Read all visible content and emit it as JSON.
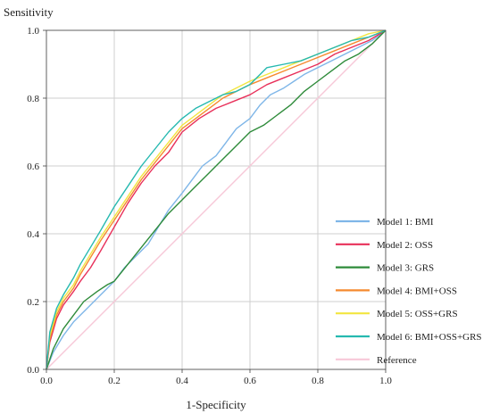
{
  "chart_data": {
    "type": "line",
    "title": "",
    "xlabel": "1-Specificity",
    "ylabel": "Sensitivity",
    "xlim": [
      0,
      1
    ],
    "ylim": [
      0,
      1
    ],
    "xticks": [
      "0.0",
      "0.2",
      "0.4",
      "0.6",
      "0.8",
      "1.0"
    ],
    "yticks": [
      "0.0",
      "0.2",
      "0.4",
      "0.6",
      "0.8",
      "1.0"
    ],
    "grid": true,
    "legend_position": "bottom-right",
    "series": [
      {
        "name": "Model 1: BMI",
        "color": "#7fb6e8",
        "x": [
          0,
          0.02,
          0.05,
          0.08,
          0.12,
          0.16,
          0.2,
          0.23,
          0.26,
          0.3,
          0.33,
          0.36,
          0.4,
          0.43,
          0.46,
          0.5,
          0.53,
          0.56,
          0.6,
          0.63,
          0.66,
          0.7,
          0.73,
          0.76,
          0.8,
          0.84,
          0.88,
          0.92,
          0.96,
          1.0
        ],
        "y": [
          0,
          0.05,
          0.1,
          0.14,
          0.18,
          0.22,
          0.26,
          0.3,
          0.33,
          0.37,
          0.42,
          0.47,
          0.52,
          0.56,
          0.6,
          0.63,
          0.67,
          0.71,
          0.74,
          0.78,
          0.81,
          0.83,
          0.85,
          0.87,
          0.89,
          0.91,
          0.93,
          0.95,
          0.97,
          1.0
        ]
      },
      {
        "name": "Model 2: OSS",
        "color": "#e8305a",
        "x": [
          0,
          0.01,
          0.03,
          0.05,
          0.08,
          0.1,
          0.13,
          0.16,
          0.2,
          0.24,
          0.28,
          0.32,
          0.36,
          0.4,
          0.45,
          0.5,
          0.55,
          0.6,
          0.65,
          0.7,
          0.75,
          0.8,
          0.85,
          0.9,
          0.95,
          1.0
        ],
        "y": [
          0,
          0.08,
          0.15,
          0.19,
          0.23,
          0.26,
          0.3,
          0.35,
          0.42,
          0.49,
          0.55,
          0.6,
          0.64,
          0.7,
          0.74,
          0.77,
          0.79,
          0.81,
          0.84,
          0.86,
          0.88,
          0.9,
          0.93,
          0.95,
          0.97,
          1.0
        ]
      },
      {
        "name": "Model 3: GRS",
        "color": "#2e8b3a",
        "x": [
          0,
          0.02,
          0.05,
          0.08,
          0.11,
          0.15,
          0.18,
          0.2,
          0.24,
          0.28,
          0.32,
          0.36,
          0.4,
          0.44,
          0.48,
          0.52,
          0.56,
          0.6,
          0.64,
          0.68,
          0.72,
          0.76,
          0.8,
          0.84,
          0.88,
          0.92,
          0.96,
          1.0
        ],
        "y": [
          0,
          0.06,
          0.12,
          0.16,
          0.2,
          0.23,
          0.25,
          0.26,
          0.31,
          0.36,
          0.41,
          0.46,
          0.5,
          0.54,
          0.58,
          0.62,
          0.66,
          0.7,
          0.72,
          0.75,
          0.78,
          0.82,
          0.85,
          0.88,
          0.91,
          0.93,
          0.96,
          1.0
        ]
      },
      {
        "name": "Model 4: BMI+OSS",
        "color": "#f58a2e",
        "x": [
          0,
          0.01,
          0.03,
          0.05,
          0.08,
          0.1,
          0.13,
          0.16,
          0.2,
          0.24,
          0.28,
          0.32,
          0.36,
          0.4,
          0.44,
          0.48,
          0.52,
          0.56,
          0.6,
          0.65,
          0.7,
          0.75,
          0.8,
          0.85,
          0.9,
          0.95,
          1.0
        ],
        "y": [
          0,
          0.09,
          0.16,
          0.2,
          0.24,
          0.28,
          0.33,
          0.38,
          0.44,
          0.5,
          0.56,
          0.61,
          0.66,
          0.71,
          0.74,
          0.77,
          0.8,
          0.82,
          0.84,
          0.86,
          0.88,
          0.9,
          0.92,
          0.94,
          0.96,
          0.98,
          1.0
        ]
      },
      {
        "name": "Model 5: OSS+GRS",
        "color": "#f2e640",
        "x": [
          0,
          0.01,
          0.03,
          0.05,
          0.08,
          0.1,
          0.13,
          0.16,
          0.2,
          0.24,
          0.28,
          0.32,
          0.36,
          0.4,
          0.44,
          0.48,
          0.52,
          0.56,
          0.6,
          0.65,
          0.7,
          0.75,
          0.8,
          0.85,
          0.9,
          0.95,
          1.0
        ],
        "y": [
          0,
          0.1,
          0.17,
          0.21,
          0.25,
          0.29,
          0.34,
          0.39,
          0.45,
          0.51,
          0.57,
          0.62,
          0.67,
          0.72,
          0.75,
          0.78,
          0.81,
          0.83,
          0.85,
          0.87,
          0.89,
          0.91,
          0.93,
          0.95,
          0.97,
          0.99,
          1.0
        ]
      },
      {
        "name": "Model 6: BMI+OSS+GRS",
        "color": "#26b9b0",
        "x": [
          0,
          0.01,
          0.03,
          0.05,
          0.08,
          0.1,
          0.13,
          0.16,
          0.2,
          0.24,
          0.28,
          0.32,
          0.36,
          0.4,
          0.44,
          0.48,
          0.52,
          0.56,
          0.6,
          0.63,
          0.65,
          0.7,
          0.75,
          0.8,
          0.85,
          0.9,
          0.95,
          1.0
        ],
        "y": [
          0,
          0.11,
          0.18,
          0.22,
          0.27,
          0.31,
          0.36,
          0.41,
          0.48,
          0.54,
          0.6,
          0.65,
          0.7,
          0.74,
          0.77,
          0.79,
          0.81,
          0.82,
          0.84,
          0.87,
          0.89,
          0.9,
          0.91,
          0.93,
          0.95,
          0.97,
          0.98,
          1.0
        ]
      },
      {
        "name": "Reference",
        "color": "#f7c8d8",
        "x": [
          0,
          1
        ],
        "y": [
          0,
          1
        ]
      }
    ]
  }
}
